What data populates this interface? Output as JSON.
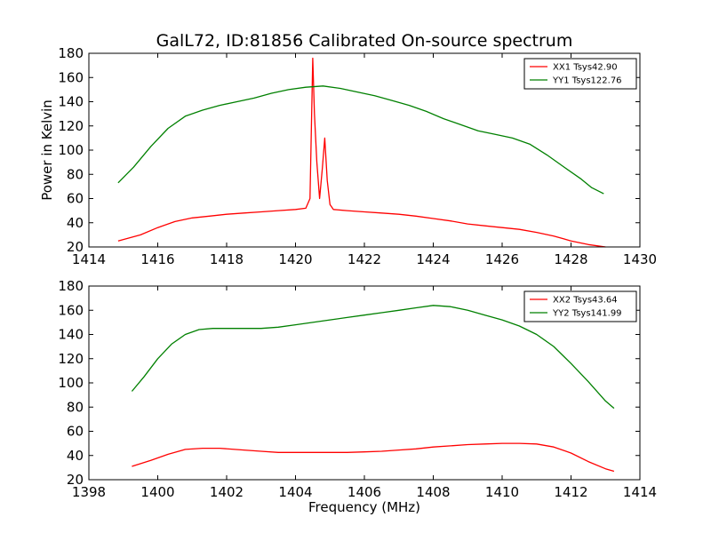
{
  "chart_data": [
    {
      "type": "line",
      "title": "GalL72, ID:81856 Calibrated On-source spectrum",
      "xlabel": "",
      "ylabel": "Power in Kelvin",
      "xlim": [
        1414,
        1430
      ],
      "ylim": [
        20,
        180
      ],
      "xticks": [
        1414,
        1416,
        1418,
        1420,
        1422,
        1424,
        1426,
        1428,
        1430
      ],
      "yticks": [
        20,
        40,
        60,
        80,
        100,
        120,
        140,
        160,
        180
      ],
      "xtick_labels": [
        "1414",
        "1416",
        "1418",
        "1420",
        "1422",
        "1424",
        "1426",
        "1428",
        "1430"
      ],
      "ytick_labels": [
        "20",
        "40",
        "60",
        "80",
        "100",
        "120",
        "140",
        "160",
        "180"
      ],
      "legend_position": "top-right",
      "grid": false,
      "series": [
        {
          "name": "XX1 Tsys42.90",
          "color": "#ff0000",
          "x": [
            1414.85,
            1415.5,
            1416.0,
            1416.5,
            1417.0,
            1417.5,
            1418.0,
            1418.5,
            1419.0,
            1419.5,
            1420.0,
            1420.3,
            1420.42,
            1420.5,
            1420.55,
            1420.62,
            1420.7,
            1420.78,
            1420.85,
            1420.92,
            1421.0,
            1421.1,
            1421.5,
            1422.0,
            1422.5,
            1423.0,
            1423.5,
            1424.0,
            1424.5,
            1425.0,
            1425.5,
            1426.0,
            1426.5,
            1427.0,
            1427.5,
            1428.0,
            1428.5,
            1429.0
          ],
          "values": [
            25,
            30,
            36,
            41,
            44,
            45.5,
            47,
            48,
            49,
            50,
            51,
            52,
            60,
            176,
            130,
            90,
            60,
            85,
            110,
            75,
            55,
            51,
            50,
            49,
            48,
            47,
            45.5,
            43.5,
            41.5,
            39,
            37.5,
            36,
            34.5,
            32,
            29,
            25,
            22,
            20
          ]
        },
        {
          "name": "YY1 Tsys122.76",
          "color": "#008000",
          "x": [
            1414.85,
            1415.3,
            1415.8,
            1416.3,
            1416.8,
            1417.3,
            1417.8,
            1418.3,
            1418.8,
            1419.3,
            1419.8,
            1420.3,
            1420.8,
            1421.3,
            1421.8,
            1422.3,
            1422.8,
            1423.3,
            1423.8,
            1424.3,
            1424.8,
            1425.3,
            1425.8,
            1426.3,
            1426.8,
            1427.3,
            1427.8,
            1428.3,
            1428.6,
            1428.95
          ],
          "values": [
            73,
            86,
            103,
            118,
            128,
            133,
            137,
            140,
            143,
            147,
            150,
            152,
            153,
            151,
            148,
            145,
            141,
            137,
            132,
            126,
            121,
            116,
            113,
            110,
            105,
            96,
            86,
            76,
            69,
            64
          ]
        }
      ]
    },
    {
      "type": "line",
      "title": "",
      "xlabel": "Frequency (MHz)",
      "ylabel": "",
      "xlim": [
        1398,
        1414
      ],
      "ylim": [
        20,
        180
      ],
      "xticks": [
        1398,
        1400,
        1402,
        1404,
        1406,
        1408,
        1410,
        1412,
        1414
      ],
      "yticks": [
        20,
        40,
        60,
        80,
        100,
        120,
        140,
        160,
        180
      ],
      "xtick_labels": [
        "1398",
        "1400",
        "1402",
        "1404",
        "1406",
        "1408",
        "1410",
        "1412",
        "1414"
      ],
      "ytick_labels": [
        "20",
        "40",
        "60",
        "80",
        "100",
        "120",
        "140",
        "160",
        "180"
      ],
      "legend_position": "top-right",
      "grid": false,
      "series": [
        {
          "name": "XX2 Tsys43.64",
          "color": "#ff0000",
          "x": [
            1399.25,
            1399.8,
            1400.3,
            1400.8,
            1401.3,
            1401.8,
            1402.5,
            1403.0,
            1403.5,
            1404.0,
            1404.5,
            1405.0,
            1405.5,
            1406.0,
            1406.5,
            1407.0,
            1407.5,
            1408.0,
            1408.5,
            1409.0,
            1409.5,
            1410.0,
            1410.5,
            1411.0,
            1411.5,
            1412.0,
            1412.5,
            1413.0,
            1413.25
          ],
          "values": [
            31,
            36,
            41,
            45,
            46,
            46,
            44.5,
            43.5,
            42.5,
            42.5,
            42.5,
            42.5,
            42.5,
            43,
            43.5,
            44.5,
            45.5,
            47,
            48,
            49,
            49.5,
            50,
            50,
            49.5,
            47,
            42,
            35,
            29,
            27
          ]
        },
        {
          "name": "YY2 Tsys141.99",
          "color": "#008000",
          "x": [
            1399.25,
            1399.6,
            1400.0,
            1400.4,
            1400.8,
            1401.2,
            1401.6,
            1402.0,
            1402.5,
            1403.0,
            1403.5,
            1404.0,
            1404.5,
            1405.0,
            1405.5,
            1406.0,
            1406.5,
            1407.0,
            1407.5,
            1408.0,
            1408.5,
            1409.0,
            1409.5,
            1410.0,
            1410.5,
            1411.0,
            1411.5,
            1412.0,
            1412.5,
            1413.0,
            1413.25
          ],
          "values": [
            93,
            105,
            120,
            132,
            140,
            144,
            145,
            145,
            145,
            145,
            146,
            148,
            150,
            152,
            154,
            156,
            158,
            160,
            162,
            164,
            163,
            160,
            156,
            152,
            147,
            140,
            130,
            116,
            101,
            85,
            79
          ]
        }
      ]
    }
  ]
}
